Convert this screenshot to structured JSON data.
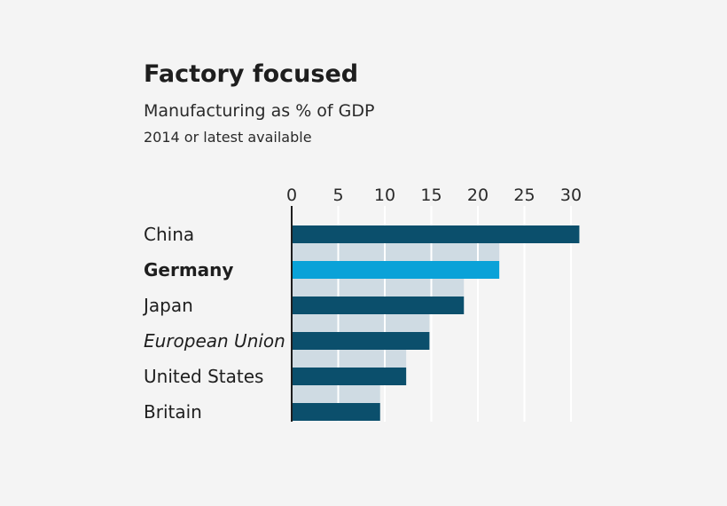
{
  "chart_data": {
    "type": "bar",
    "orientation": "horizontal",
    "title": "Factory focused",
    "subtitle": "Manufacturing as % of GDP",
    "note": "2014 or latest available",
    "xlim": [
      0,
      30
    ],
    "ticks": [
      "0",
      "5",
      "10",
      "15",
      "20",
      "25",
      "30"
    ],
    "grid": true,
    "categories": [
      {
        "label": "China",
        "value": 30.9,
        "style": "normal",
        "highlight": false
      },
      {
        "label": "Germany",
        "value": 22.3,
        "style": "bold",
        "highlight": true
      },
      {
        "label": "Japan",
        "value": 18.5,
        "style": "normal",
        "highlight": false
      },
      {
        "label": "European Union",
        "value": 14.8,
        "style": "italic",
        "highlight": false
      },
      {
        "label": "United States",
        "value": 12.3,
        "style": "normal",
        "highlight": false
      },
      {
        "label": "Britain",
        "value": 9.5,
        "style": "normal",
        "highlight": false
      }
    ],
    "colors": {
      "bar": "#0b4f6c",
      "highlight": "#0aa2d8",
      "band": "#cfdbe3",
      "grid": "#ffffff",
      "axis": "#1e1e1e"
    }
  }
}
